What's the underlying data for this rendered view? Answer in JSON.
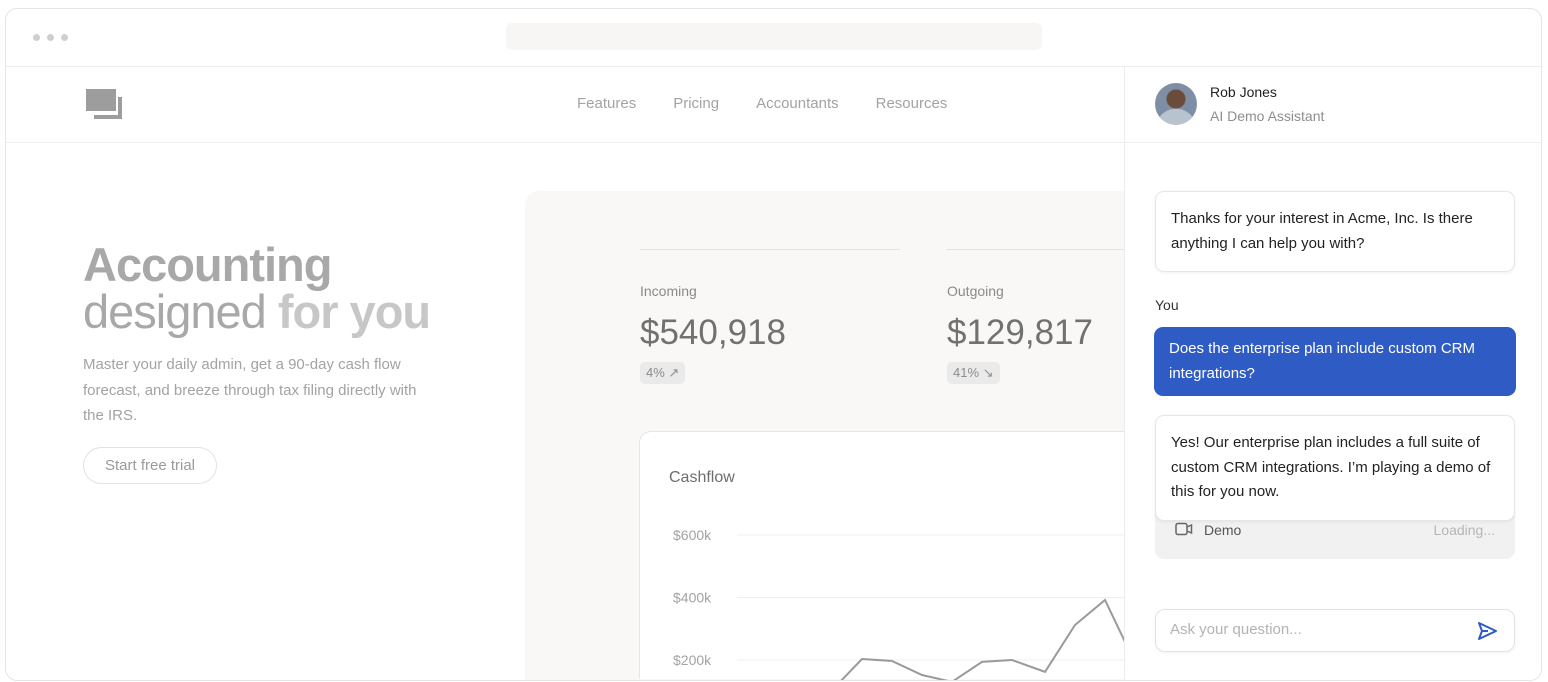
{
  "nav": {
    "links": [
      "Features",
      "Pricing",
      "Accountants",
      "Resources"
    ]
  },
  "hero": {
    "title_line1": "Accounting",
    "title_line2a": "designed",
    "title_line2b": " for you",
    "description": "Master your daily admin, get a 90-day cash flow forecast, and breeze through tax filing directly with the IRS.",
    "cta": "Start free trial"
  },
  "stats": [
    {
      "label": "Incoming",
      "value": "$540,918",
      "change": "4%",
      "direction": "up"
    },
    {
      "label": "Outgoing",
      "value": "$129,817",
      "change": "41%",
      "direction": "down"
    }
  ],
  "chart_data": {
    "type": "line",
    "title": "Cashflow",
    "yticks": [
      "$600k",
      "$400k",
      "$200k"
    ],
    "ytick_values": [
      600,
      400,
      200
    ],
    "y_unit": "k USD",
    "values": [
      130,
      203,
      197,
      152,
      130,
      194,
      200,
      162,
      312,
      392,
      258
    ],
    "grid": true,
    "color": "#9a9a9a"
  },
  "chat": {
    "agent_name": "Rob Jones",
    "agent_role": "AI Demo Assistant",
    "messages": [
      {
        "from": "agent",
        "text": "Thanks for your interest in Acme, Inc. Is there anything I can help you with?"
      },
      {
        "from": "user",
        "label": "You",
        "text": "Does the enterprise plan include custom CRM integrations?"
      },
      {
        "from": "agent",
        "text": "Yes! Our enterprise plan includes a full suite of custom CRM integrations. I’m playing a demo of this for you now."
      }
    ],
    "demo": {
      "label": "Demo",
      "status": "Loading..."
    },
    "input_placeholder": "Ask your question...",
    "accent": "#2f5bc4"
  }
}
